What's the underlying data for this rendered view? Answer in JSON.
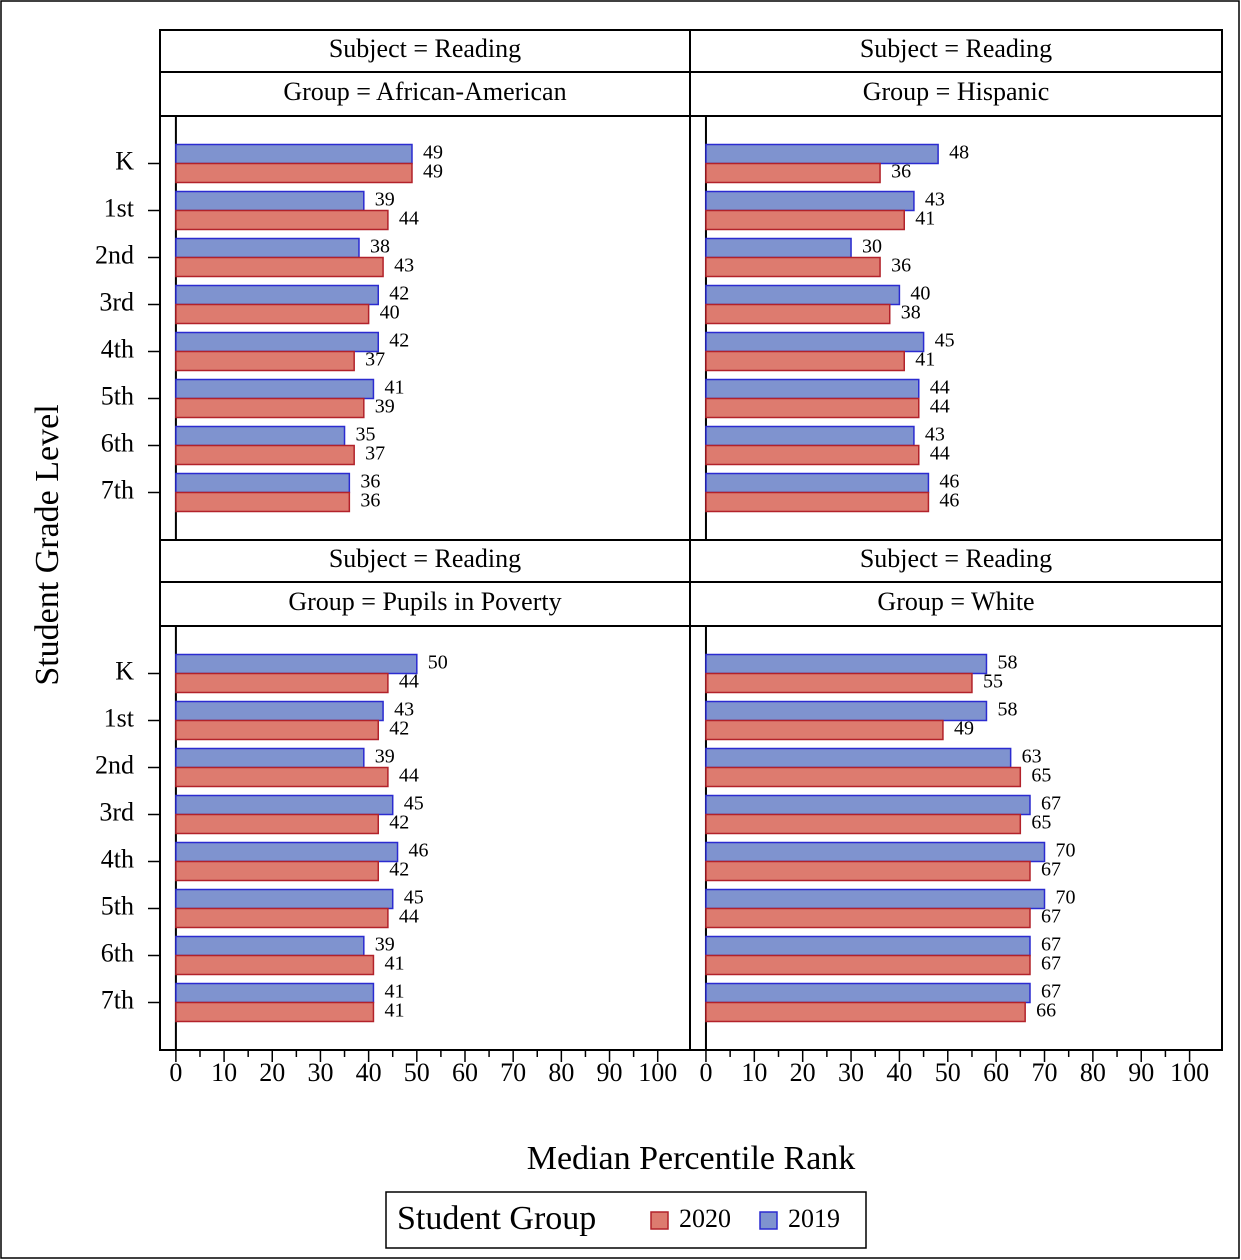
{
  "figure": {
    "ylabel": "Student Grade Level",
    "xlabel": "Median Percentile Rank",
    "legend_title": "Student Group"
  },
  "chart_data": [
    {
      "type": "bar",
      "orientation": "horizontal",
      "title": "Subject = Reading",
      "subtitle": "Group = African-American",
      "categories": [
        "K",
        "1st",
        "2nd",
        "3rd",
        "4th",
        "5th",
        "6th",
        "7th"
      ],
      "xlim": [
        -3.3,
        106.7
      ],
      "series": [
        {
          "name": "2019",
          "color": "#7f93cf",
          "edgecolor": "#2b2bd0",
          "values": [
            49,
            39,
            38,
            42,
            42,
            41,
            35,
            36
          ]
        },
        {
          "name": "2020",
          "color": "#dd7b6f",
          "edgecolor": "#b2222a",
          "values": [
            49,
            44,
            43,
            40,
            37,
            39,
            37,
            36
          ]
        }
      ]
    },
    {
      "type": "bar",
      "orientation": "horizontal",
      "title": "Subject = Reading",
      "subtitle": "Group = Hispanic",
      "xlim": [
        -3.3,
        106.7
      ],
      "series": [
        {
          "color": "#7f93cf",
          "edgecolor": "#2b2bd0",
          "values": [
            48,
            43,
            30,
            40,
            45,
            44,
            43,
            46
          ]
        },
        {
          "color": "#dd7b6f",
          "edgecolor": "#b2222a",
          "values": [
            36,
            41,
            36,
            38,
            41,
            44,
            44,
            46
          ]
        }
      ]
    },
    {
      "type": "bar",
      "orientation": "horizontal",
      "title": "Subject = Reading",
      "subtitle": "Group = Pupils in Poverty",
      "categories": [
        "K",
        "1st",
        "2nd",
        "3rd",
        "4th",
        "5th",
        "6th",
        "7th"
      ],
      "xlim": [
        -3.3,
        106.7
      ],
      "xticks": [
        0,
        10,
        20,
        30,
        40,
        50,
        60,
        70,
        80,
        90,
        100
      ],
      "series": [
        {
          "color": "#7f93cf",
          "edgecolor": "#2b2bd0",
          "values": [
            50,
            43,
            39,
            45,
            46,
            45,
            39,
            41
          ]
        },
        {
          "color": "#dd7b6f",
          "edgecolor": "#b2222a",
          "values": [
            44,
            42,
            44,
            42,
            42,
            44,
            41,
            41
          ]
        }
      ]
    },
    {
      "type": "bar",
      "orientation": "horizontal",
      "title": "Subject = Reading",
      "subtitle": "Group = White",
      "xlim": [
        -3.3,
        106.7
      ],
      "xticks": [
        0,
        10,
        20,
        30,
        40,
        50,
        60,
        70,
        80,
        90,
        100
      ],
      "series": [
        {
          "color": "#7f93cf",
          "edgecolor": "#2b2bd0",
          "values": [
            58,
            58,
            63,
            67,
            70,
            70,
            67,
            67
          ]
        },
        {
          "color": "#dd7b6f",
          "edgecolor": "#b2222a",
          "values": [
            55,
            49,
            65,
            65,
            67,
            67,
            67,
            66
          ]
        }
      ]
    }
  ]
}
